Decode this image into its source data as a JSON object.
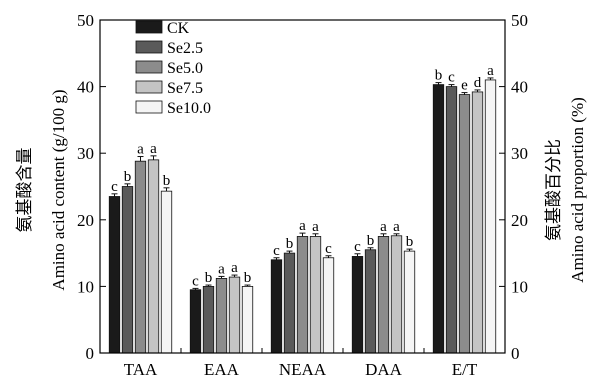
{
  "chart_data": {
    "type": "bar",
    "categories": [
      "TAA",
      "EAA",
      "NEAA",
      "DAA",
      "E/T"
    ],
    "series": [
      {
        "name": "CK",
        "color": "#1a1a1a",
        "values": [
          23.5,
          9.5,
          14.0,
          14.5,
          40.3
        ],
        "errors": [
          0.4,
          0.2,
          0.3,
          0.4,
          0.3
        ],
        "letters": [
          "c",
          "c",
          "c",
          "c",
          "b"
        ]
      },
      {
        "name": "Se2.5",
        "color": "#5a5a5a",
        "values": [
          25.0,
          10.0,
          15.0,
          15.5,
          40.0
        ],
        "errors": [
          0.4,
          0.2,
          0.3,
          0.3,
          0.3
        ],
        "letters": [
          "b",
          "b",
          "b",
          "b",
          "c"
        ]
      },
      {
        "name": "Se5.0",
        "color": "#8c8c8c",
        "values": [
          28.8,
          11.2,
          17.5,
          17.5,
          38.8
        ],
        "errors": [
          0.7,
          0.3,
          0.5,
          0.4,
          0.3
        ],
        "letters": [
          "a",
          "a",
          "a",
          "a",
          "e"
        ]
      },
      {
        "name": "Se7.5",
        "color": "#c4c4c4",
        "values": [
          29.0,
          11.4,
          17.5,
          17.6,
          39.2
        ],
        "errors": [
          0.6,
          0.3,
          0.4,
          0.3,
          0.3
        ],
        "letters": [
          "a",
          "a",
          "a",
          "a",
          "d"
        ]
      },
      {
        "name": "Se10.0",
        "color": "#f5f5f5",
        "values": [
          24.3,
          10.0,
          14.3,
          15.3,
          41.0
        ],
        "errors": [
          0.5,
          0.2,
          0.3,
          0.3,
          0.3
        ],
        "letters": [
          "b",
          "b",
          "c",
          "b",
          "a"
        ]
      }
    ],
    "ylim": [
      0,
      50
    ],
    "yticks": [
      0,
      10,
      20,
      30,
      40,
      50
    ],
    "y2lim": [
      0,
      50
    ],
    "y2ticks": [
      0,
      10,
      20,
      30,
      40,
      50
    ],
    "ylabel_cn": "氨基酸含量",
    "ylabel": "Amino acid content (g/100 g)",
    "y2label_cn": "氨基酸百分比",
    "y2label": "Amino acid proportion (%)",
    "legend_position": "top-left",
    "grid": false
  }
}
